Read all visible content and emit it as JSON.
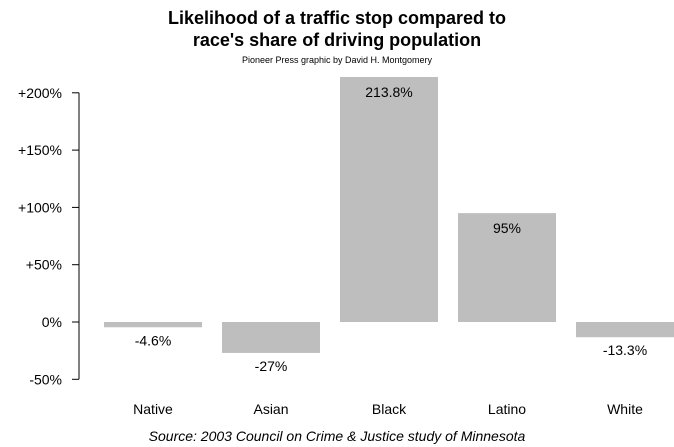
{
  "chart_data": {
    "type": "bar",
    "title_line1": "Likelihood of a traffic stop compared to",
    "title_line2": "race's share of driving population",
    "subtitle": "Pioneer Press graphic by David H. Montgomery",
    "source": "Source: 2003 Council on Crime & Justice study of Minnesota",
    "categories": [
      "Native",
      "Asian",
      "Black",
      "Latino",
      "White"
    ],
    "values": [
      -4.6,
      -27,
      213.8,
      95,
      -13.3
    ],
    "data_labels": [
      "-4.6%",
      "-27%",
      "213.8%",
      "95%",
      "-13.3%"
    ],
    "yticks": [
      -50,
      0,
      50,
      100,
      150,
      200
    ],
    "ytick_labels": [
      "-50%",
      "0%",
      "+50%",
      "+100%",
      "+150%",
      "+200%"
    ],
    "ylim": [
      -50,
      213.8
    ],
    "bar_color": "#bebebe",
    "grid": false
  }
}
